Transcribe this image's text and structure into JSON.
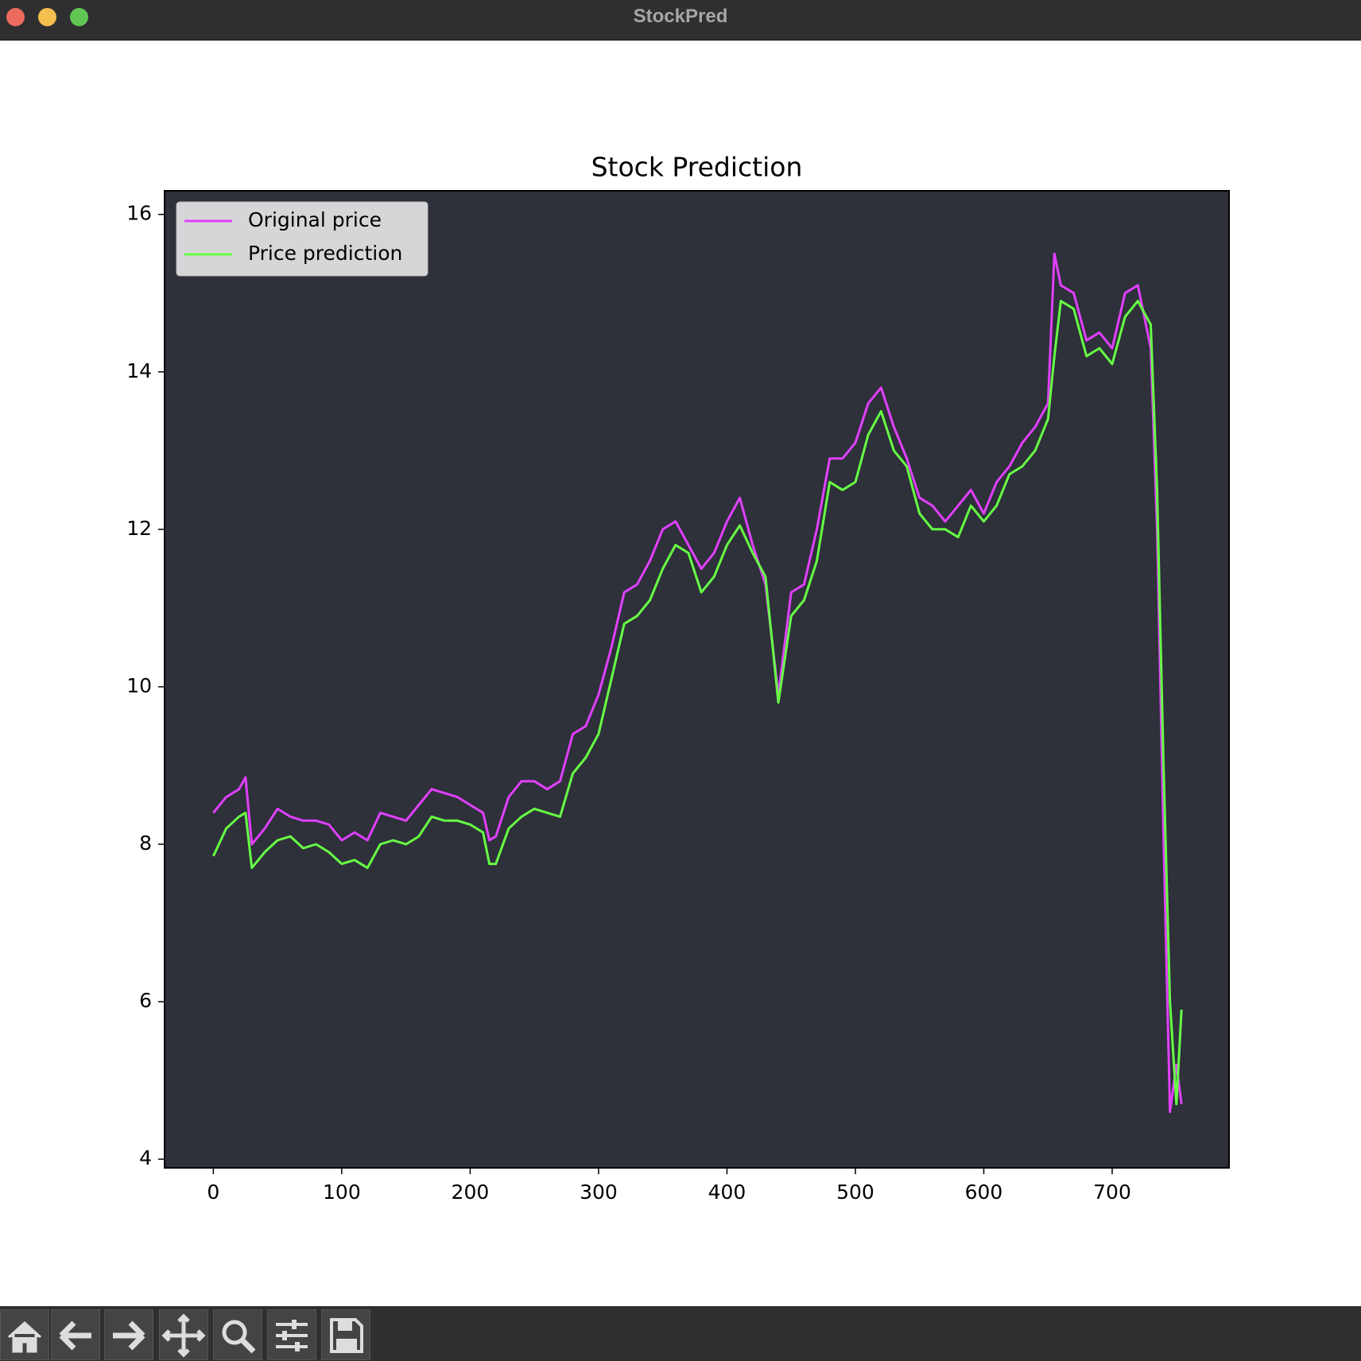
{
  "window": {
    "title": "StockPred"
  },
  "chart_data": {
    "type": "line",
    "title": "Stock Prediction",
    "x": [
      0,
      10,
      20,
      25,
      30,
      40,
      50,
      60,
      70,
      80,
      90,
      100,
      110,
      120,
      130,
      140,
      150,
      160,
      170,
      180,
      190,
      200,
      210,
      215,
      220,
      230,
      240,
      250,
      260,
      270,
      280,
      290,
      300,
      310,
      320,
      330,
      340,
      350,
      360,
      370,
      380,
      390,
      400,
      410,
      420,
      430,
      440,
      450,
      460,
      470,
      480,
      490,
      500,
      510,
      520,
      530,
      540,
      550,
      560,
      570,
      580,
      590,
      600,
      610,
      620,
      630,
      640,
      650,
      655,
      660,
      670,
      680,
      690,
      700,
      710,
      720,
      730,
      735,
      740,
      745,
      750,
      754
    ],
    "series": [
      {
        "name": "Original price",
        "color": "#e040fb",
        "values": [
          8.4,
          8.6,
          8.7,
          8.85,
          8.0,
          8.2,
          8.45,
          8.35,
          8.3,
          8.3,
          8.25,
          8.05,
          8.15,
          8.05,
          8.4,
          8.35,
          8.3,
          8.5,
          8.7,
          8.65,
          8.6,
          8.5,
          8.4,
          8.05,
          8.1,
          8.6,
          8.8,
          8.8,
          8.7,
          8.8,
          9.4,
          9.5,
          9.9,
          10.5,
          11.2,
          11.3,
          11.6,
          12.0,
          12.1,
          11.8,
          11.5,
          11.7,
          12.1,
          12.4,
          11.8,
          11.3,
          9.9,
          11.2,
          11.3,
          12.0,
          12.9,
          12.9,
          13.1,
          13.6,
          13.8,
          13.3,
          12.9,
          12.4,
          12.3,
          12.1,
          12.3,
          12.5,
          12.2,
          12.6,
          12.8,
          13.1,
          13.3,
          13.6,
          15.5,
          15.1,
          15.0,
          14.4,
          14.5,
          14.3,
          15.0,
          15.1,
          14.3,
          12.0,
          8.1,
          4.6,
          5.2,
          4.7
        ]
      },
      {
        "name": "Price prediction",
        "color": "#66ff44",
        "values": [
          7.85,
          8.2,
          8.35,
          8.4,
          7.7,
          7.9,
          8.05,
          8.1,
          7.95,
          8.0,
          7.9,
          7.75,
          7.8,
          7.7,
          8.0,
          8.05,
          8.0,
          8.1,
          8.35,
          8.3,
          8.3,
          8.25,
          8.15,
          7.75,
          7.75,
          8.2,
          8.35,
          8.45,
          8.4,
          8.35,
          8.9,
          9.1,
          9.4,
          10.1,
          10.8,
          10.9,
          11.1,
          11.5,
          11.8,
          11.7,
          11.2,
          11.4,
          11.8,
          12.05,
          11.7,
          11.4,
          9.8,
          10.9,
          11.1,
          11.6,
          12.6,
          12.5,
          12.6,
          13.2,
          13.5,
          13.0,
          12.8,
          12.2,
          12.0,
          12.0,
          11.9,
          12.3,
          12.1,
          12.3,
          12.7,
          12.8,
          13.0,
          13.4,
          14.2,
          14.9,
          14.8,
          14.2,
          14.3,
          14.1,
          14.7,
          14.9,
          14.6,
          12.5,
          9.0,
          6.0,
          4.7,
          5.9
        ]
      }
    ],
    "xlim": [
      -38,
      791
    ],
    "ylim": [
      3.89,
      16.3
    ],
    "xticks": [
      0,
      100,
      200,
      300,
      400,
      500,
      600,
      700
    ],
    "yticks": [
      4,
      6,
      8,
      10,
      12,
      14,
      16
    ],
    "legend": "upper left",
    "background": "#2e303a"
  }
}
